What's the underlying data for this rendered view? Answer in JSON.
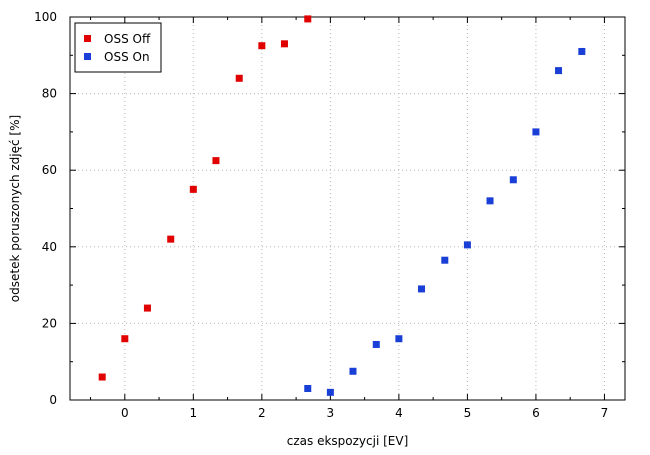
{
  "chart_data": {
    "type": "scatter",
    "xlabel": "czas ekspozycji [EV]",
    "ylabel": "odsetek poruszonych zdjęć [%]",
    "xlim": [
      -0.8,
      7.3
    ],
    "ylim": [
      0,
      100
    ],
    "xticks": [
      0,
      1,
      2,
      3,
      4,
      5,
      6,
      7
    ],
    "yticks": [
      0,
      20,
      40,
      60,
      80,
      100
    ],
    "grid": true,
    "legend_position": "top-left",
    "series": [
      {
        "name": "OSS Off",
        "color": "#e00000",
        "marker": "square",
        "x": [
          -0.33,
          0,
          0.33,
          0.67,
          1,
          1.33,
          1.67,
          2,
          2.33,
          2.67
        ],
        "y": [
          6,
          16,
          24,
          42,
          55,
          62.5,
          84,
          92.5,
          93,
          99.5
        ]
      },
      {
        "name": "OSS On",
        "color": "#1a3fd6",
        "marker": "square",
        "x": [
          2.67,
          3,
          3.33,
          3.67,
          4,
          4.33,
          4.67,
          5,
          5.33,
          5.67,
          6,
          6.33,
          6.67
        ],
        "y": [
          3,
          2,
          7.5,
          14.5,
          16,
          29,
          36.5,
          40.5,
          52,
          57.5,
          70,
          86,
          91
        ]
      }
    ]
  }
}
